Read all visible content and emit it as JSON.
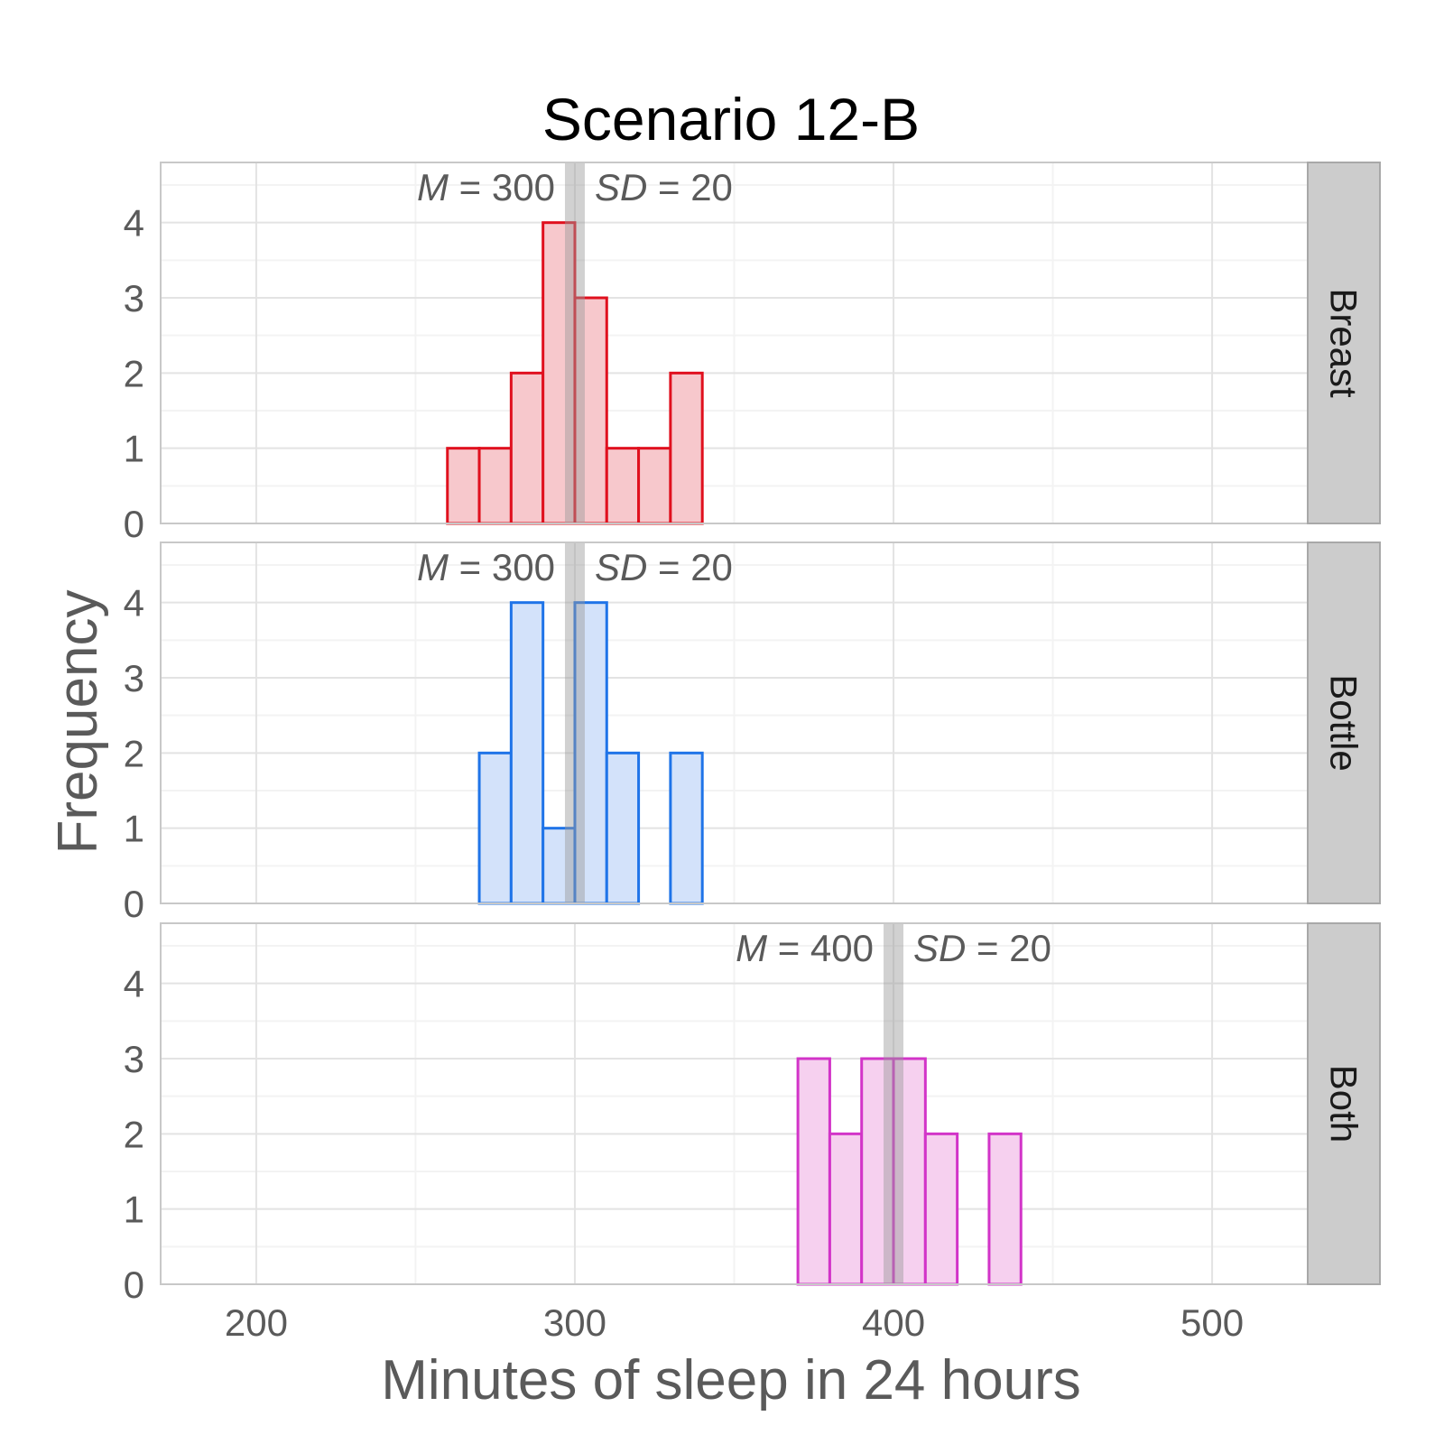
{
  "chart_data": {
    "type": "bar",
    "title": "Scenario 12-B",
    "xlabel": "Minutes of sleep in 24 hours",
    "ylabel": "Frequency",
    "xlim": [
      170,
      530
    ],
    "ylim": [
      0,
      4.8
    ],
    "x_ticks": [
      200,
      300,
      400,
      500
    ],
    "y_ticks": [
      0,
      1,
      2,
      3,
      4
    ],
    "bin_width": 10,
    "grid": true,
    "facets": [
      {
        "name": "Breast",
        "color": "#e0101e",
        "fill": "#f7c8cc",
        "bins": [
          [
            260,
            1
          ],
          [
            270,
            1
          ],
          [
            280,
            2
          ],
          [
            290,
            4
          ],
          [
            300,
            3
          ],
          [
            310,
            1
          ],
          [
            320,
            1
          ],
          [
            330,
            2
          ]
        ],
        "mean": 300,
        "annotation": {
          "m_label": "M",
          "m_value": "300",
          "sd_label": "SD",
          "sd_value": "20",
          "eq": "="
        }
      },
      {
        "name": "Bottle",
        "color": "#1f74e8",
        "fill": "#d3e2fa",
        "bins": [
          [
            270,
            2
          ],
          [
            280,
            4
          ],
          [
            290,
            1
          ],
          [
            300,
            4
          ],
          [
            310,
            2
          ],
          [
            330,
            2
          ]
        ],
        "mean": 300,
        "annotation": {
          "m_label": "M",
          "m_value": "300",
          "sd_label": "SD",
          "sd_value": "20",
          "eq": "="
        }
      },
      {
        "name": "Both",
        "color": "#d234c8",
        "fill": "#f6d0ef",
        "bins": [
          [
            370,
            3
          ],
          [
            380,
            2
          ],
          [
            390,
            3
          ],
          [
            400,
            3
          ],
          [
            410,
            2
          ],
          [
            430,
            2
          ]
        ],
        "mean": 400,
        "annotation": {
          "m_label": "M",
          "m_value": "400",
          "sd_label": "SD",
          "sd_value": "20",
          "eq": "="
        }
      }
    ]
  }
}
